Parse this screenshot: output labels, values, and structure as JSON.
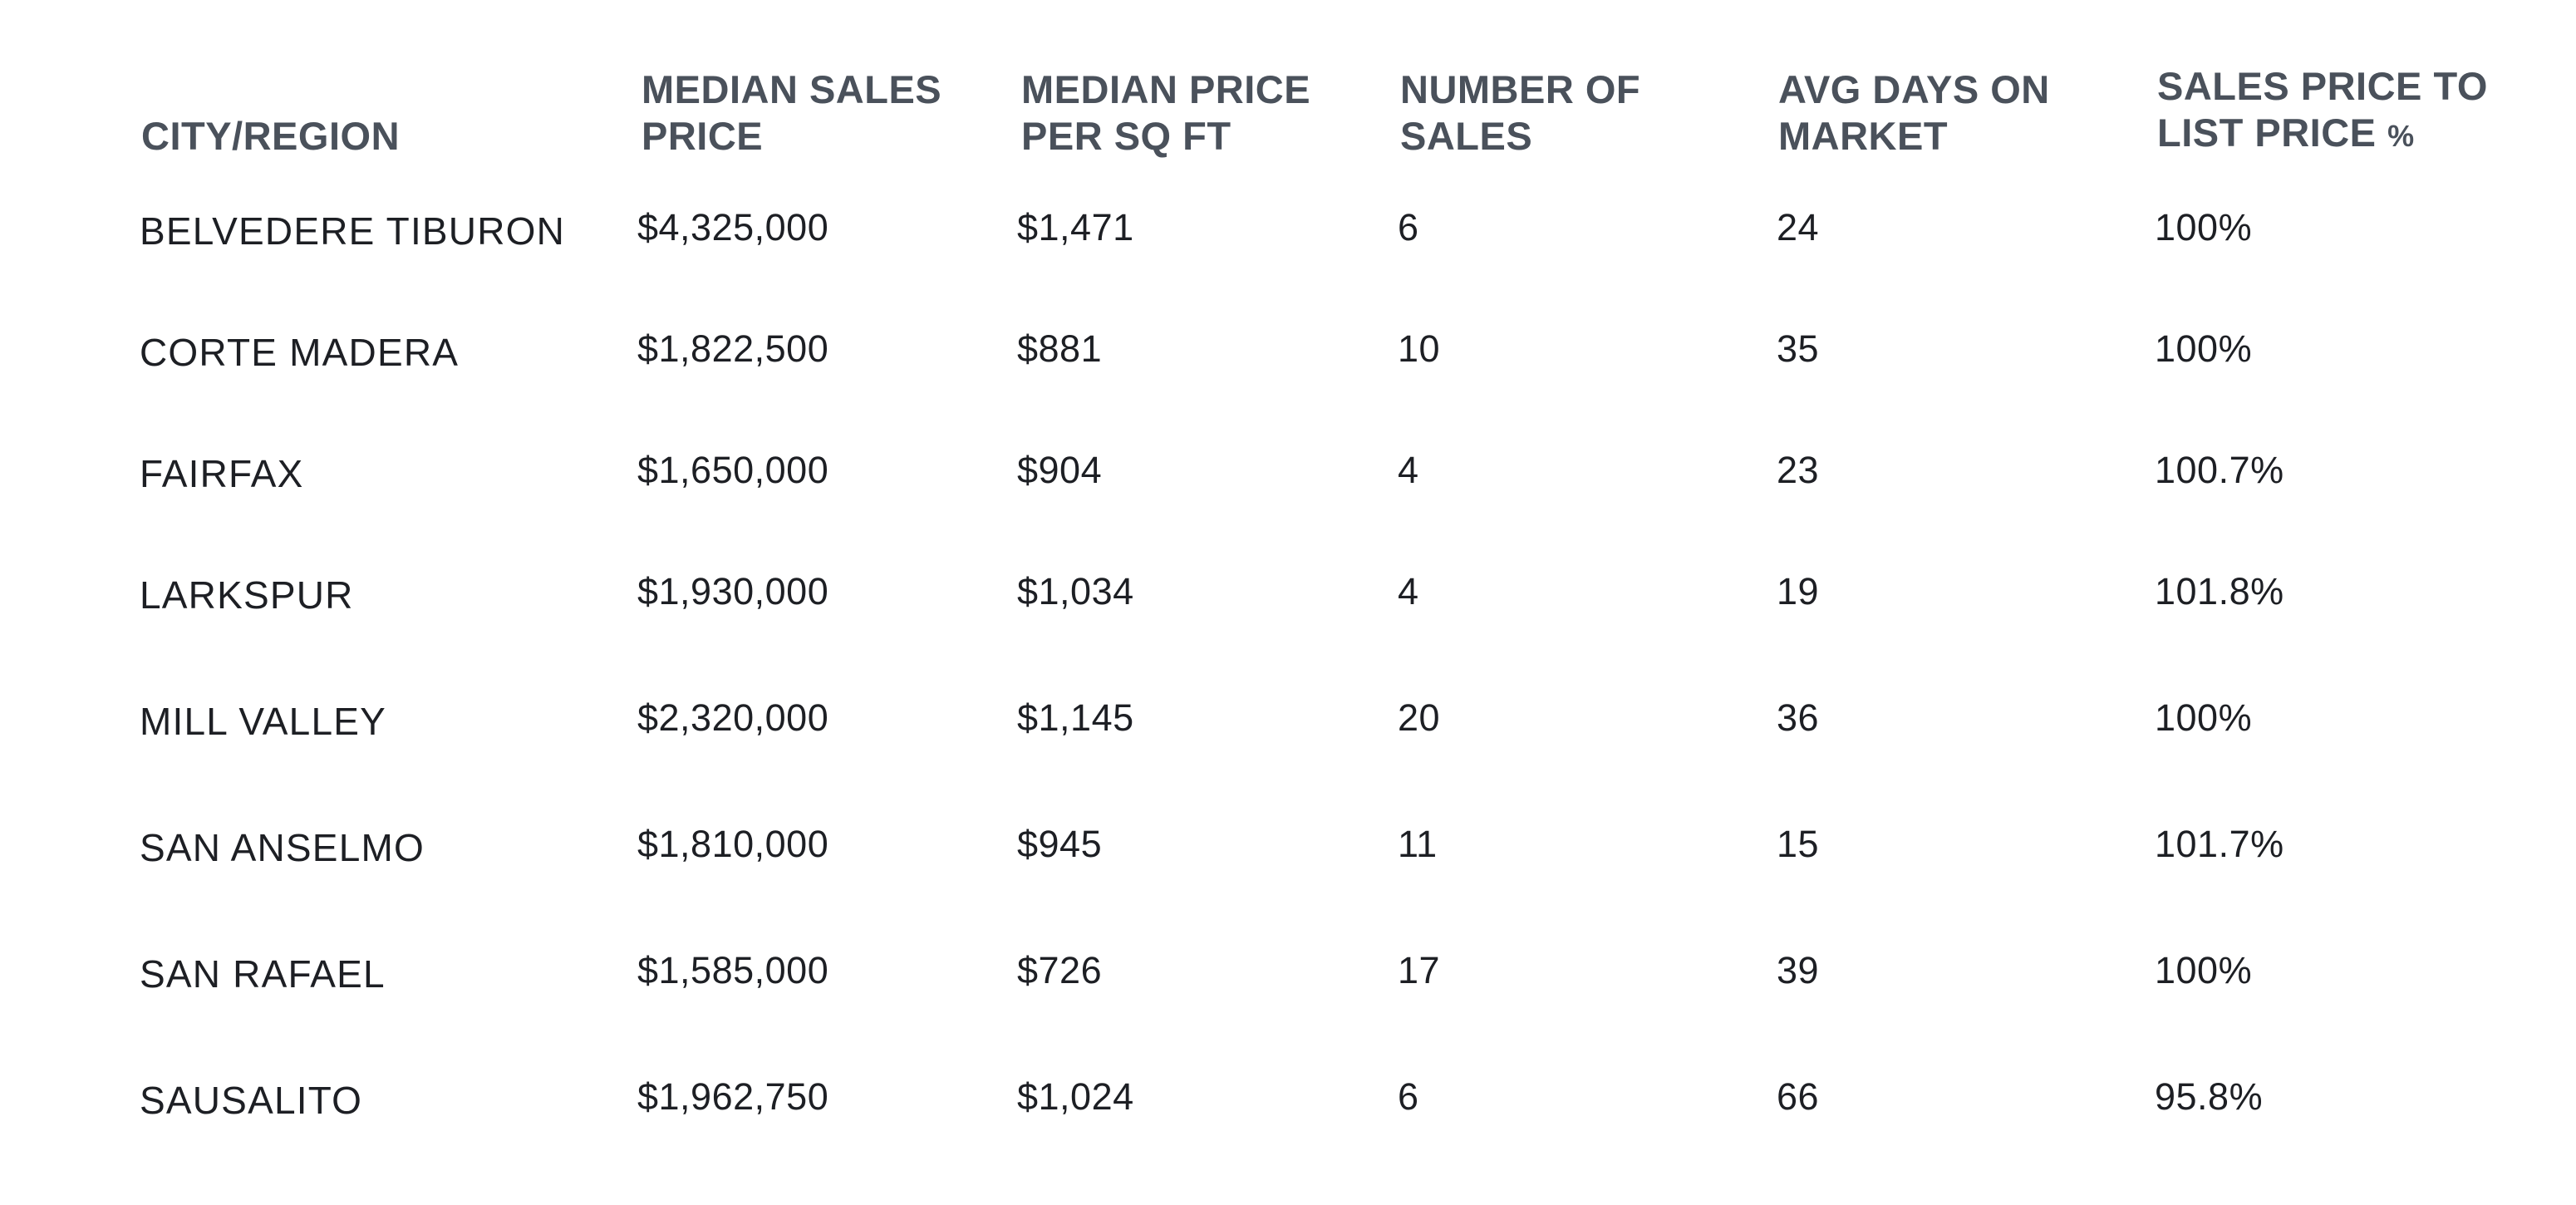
{
  "table": {
    "headers": {
      "city": "CITY/REGION",
      "median_sales_price": [
        "MEDIAN SALES",
        "PRICE"
      ],
      "median_price_sqft": [
        "MEDIAN PRICE",
        "PER SQ FT"
      ],
      "number_of_sales": [
        "NUMBER OF",
        "SALES"
      ],
      "avg_days": [
        "AVG DAYS ON",
        "MARKET"
      ],
      "sales_to_list": [
        "SALES PRICE TO",
        "LIST PRICE",
        "%"
      ]
    },
    "rows": [
      {
        "city": "BELVEDERE TIBURON",
        "median_sales_price": "$4,325,000",
        "median_price_sqft": "$1,471",
        "number_of_sales": "6",
        "avg_days": "24",
        "sales_to_list": "100%"
      },
      {
        "city": "CORTE MADERA",
        "median_sales_price": "$1,822,500",
        "median_price_sqft": "$881",
        "number_of_sales": "10",
        "avg_days": "35",
        "sales_to_list": "100%"
      },
      {
        "city": "FAIRFAX",
        "median_sales_price": "$1,650,000",
        "median_price_sqft": "$904",
        "number_of_sales": "4",
        "avg_days": "23",
        "sales_to_list": "100.7%"
      },
      {
        "city": "LARKSPUR",
        "median_sales_price": "$1,930,000",
        "median_price_sqft": "$1,034",
        "number_of_sales": "4",
        "avg_days": "19",
        "sales_to_list": "101.8%"
      },
      {
        "city": "MILL VALLEY",
        "median_sales_price": "$2,320,000",
        "median_price_sqft": "$1,145",
        "number_of_sales": "20",
        "avg_days": "36",
        "sales_to_list": "100%"
      },
      {
        "city": "SAN ANSELMO",
        "median_sales_price": "$1,810,000",
        "median_price_sqft": "$945",
        "number_of_sales": "11",
        "avg_days": "15",
        "sales_to_list": "101.7%"
      },
      {
        "city": "SAN RAFAEL",
        "median_sales_price": "$1,585,000",
        "median_price_sqft": "$726",
        "number_of_sales": "17",
        "avg_days": "39",
        "sales_to_list": "100%"
      },
      {
        "city": "SAUSALITO",
        "median_sales_price": "$1,962,750",
        "median_price_sqft": "$1,024",
        "number_of_sales": "6",
        "avg_days": "66",
        "sales_to_list": "95.8%"
      }
    ]
  },
  "colors": {
    "header_text": "#4a515b",
    "body_text": "#1d1f24",
    "background": "#ffffff"
  }
}
